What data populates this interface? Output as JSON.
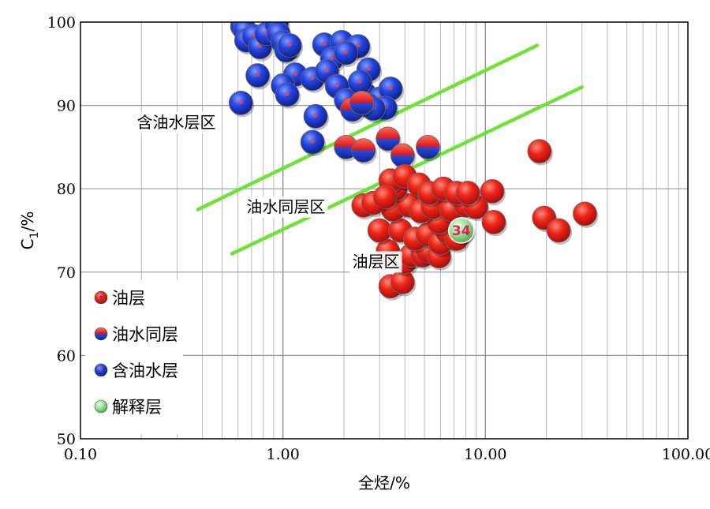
{
  "chart_data": {
    "type": "scatter",
    "xlabel": "全烃/%",
    "ylabel": "C1/%",
    "ylabel_main": "C",
    "ylabel_sub": "1",
    "ylabel_rest": "/%",
    "x_scale": "log",
    "xlim": [
      0.1,
      100
    ],
    "ylim": [
      50,
      100
    ],
    "x_ticks": [
      0.1,
      1,
      10,
      100
    ],
    "x_tick_labels": [
      "0.10",
      "1.00",
      "10.00",
      "100.00"
    ],
    "y_ticks": [
      50,
      60,
      70,
      80,
      90,
      100
    ],
    "y_tick_labels": [
      "50",
      "60",
      "70",
      "80",
      "90",
      "100"
    ],
    "grid": true,
    "legend_position": "bottom-left",
    "colors": {
      "oil": "#e8141c",
      "water": "#1f3fd8",
      "interpreted": "#8fd98a",
      "boundary": "#6fe23a"
    },
    "regions": [
      {
        "label": "含油水层区",
        "x": 0.19,
        "y": 87.3
      },
      {
        "label": "油水同层区",
        "x": 0.66,
        "y": 77.2
      },
      {
        "label": "油层区",
        "x": 2.2,
        "y": 70.6
      }
    ],
    "lines": [
      {
        "name": "upper_boundary",
        "points": [
          [
            0.38,
            77.5
          ],
          [
            18,
            97.2
          ]
        ]
      },
      {
        "name": "lower_boundary",
        "points": [
          [
            0.56,
            72.2
          ],
          [
            30,
            92.2
          ]
        ]
      }
    ],
    "annotations": [
      {
        "label": "34",
        "x": 7.6,
        "y": 75.0
      }
    ],
    "series": [
      {
        "name": "油层",
        "style": "oil",
        "points": [
          [
            3.4,
            68.3
          ],
          [
            3.9,
            68.8
          ],
          [
            3.3,
            72.5
          ],
          [
            4.0,
            71.2
          ],
          [
            4.3,
            72.0
          ],
          [
            4.9,
            72.0
          ],
          [
            5.2,
            72.5
          ],
          [
            5.9,
            71.9
          ],
          [
            3.0,
            75.0
          ],
          [
            3.8,
            75.0
          ],
          [
            4.5,
            74.0
          ],
          [
            5.2,
            74.5
          ],
          [
            6.0,
            73.5
          ],
          [
            6.5,
            74.8
          ],
          [
            7.2,
            74.0
          ],
          [
            5.9,
            76.0
          ],
          [
            3.5,
            77.5
          ],
          [
            2.5,
            78.0
          ],
          [
            2.8,
            78.3
          ],
          [
            4.2,
            78.0
          ],
          [
            4.8,
            77.3
          ],
          [
            5.5,
            77.8
          ],
          [
            6.8,
            77.5
          ],
          [
            8.0,
            78.0
          ],
          [
            9.0,
            77.8
          ],
          [
            3.6,
            80.0
          ],
          [
            3.4,
            81.0
          ],
          [
            4.0,
            81.5
          ],
          [
            4.7,
            80.5
          ],
          [
            5.3,
            79.5
          ],
          [
            6.2,
            80.0
          ],
          [
            7.2,
            79.5
          ],
          [
            8.2,
            79.5
          ],
          [
            10.8,
            79.7
          ],
          [
            11.0,
            76.0
          ],
          [
            3.2,
            79.0
          ],
          [
            18.5,
            84.5
          ],
          [
            19.5,
            76.5
          ],
          [
            23.0,
            75.0
          ],
          [
            31.0,
            77.0
          ]
        ]
      },
      {
        "name": "油水同层",
        "style": "mixed",
        "points": [
          [
            2.05,
            85.0
          ],
          [
            2.5,
            84.6
          ],
          [
            3.3,
            86.0
          ],
          [
            3.9,
            84.0
          ],
          [
            5.2,
            85.0
          ],
          [
            2.2,
            89.5
          ],
          [
            2.45,
            90.3
          ]
        ]
      },
      {
        "name": "含油水层",
        "style": "water",
        "points": [
          [
            0.63,
            99.5
          ],
          [
            0.65,
            99.0
          ],
          [
            0.66,
            97.8
          ],
          [
            0.72,
            98.3
          ],
          [
            0.77,
            97.0
          ],
          [
            0.83,
            98.6
          ],
          [
            0.93,
            99.8
          ],
          [
            0.95,
            98.6
          ],
          [
            1.0,
            97.6
          ],
          [
            1.04,
            96.6
          ],
          [
            1.08,
            97.2
          ],
          [
            1.6,
            97.3
          ],
          [
            1.95,
            97.6
          ],
          [
            2.35,
            97.1
          ],
          [
            1.75,
            95.6
          ],
          [
            2.05,
            96.3
          ],
          [
            0.75,
            93.6
          ],
          [
            1.15,
            93.7
          ],
          [
            1.4,
            93.2
          ],
          [
            1.65,
            94.1
          ],
          [
            2.65,
            94.3
          ],
          [
            1.0,
            92.4
          ],
          [
            1.05,
            91.3
          ],
          [
            1.85,
            92.3
          ],
          [
            2.05,
            90.6
          ],
          [
            2.55,
            91.3
          ],
          [
            3.0,
            90.8
          ],
          [
            3.4,
            92.0
          ],
          [
            2.65,
            90.0
          ],
          [
            3.2,
            89.7
          ],
          [
            0.62,
            90.3
          ],
          [
            1.45,
            88.7
          ],
          [
            1.4,
            85.6
          ],
          [
            2.4,
            92.8
          ],
          [
            2.8,
            89.6
          ]
        ]
      },
      {
        "name": "解释层",
        "style": "interpreted",
        "points": [
          [
            7.6,
            75.0
          ]
        ]
      }
    ]
  }
}
